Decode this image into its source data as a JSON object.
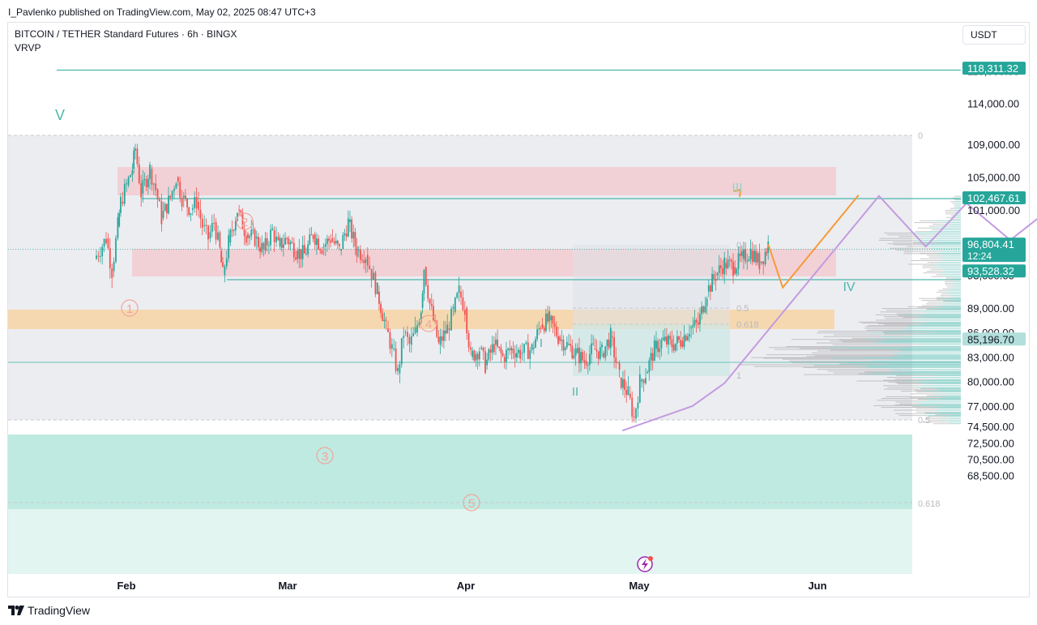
{
  "header": {
    "published": "I_Pavlenko published on TradingView.com, May 02, 2025 08:47 UTC+3"
  },
  "symbol": {
    "title": "BITCOIN / TETHER Standard Futures · 6h · BINGX",
    "indicator": "VRVP"
  },
  "currency_button": "USDT",
  "branding": {
    "label": "TradingView"
  },
  "colors": {
    "bull": "#26a69a",
    "bear": "#ef5350",
    "teal": "#4db6ac",
    "orange": "#f59b3a",
    "purple": "#c39be0",
    "pink_zone": "#f5c6cb",
    "orange_zone": "#f6d5a8",
    "teal_zone": "#c2ebe3"
  },
  "chart_data": {
    "type": "candlestick",
    "xlabels": [
      "Feb",
      "Mar",
      "Apr",
      "May",
      "Jun"
    ],
    "yticks": [
      "118,000.00",
      "114,000.00",
      "109,000.00",
      "105,000.00",
      "101,000.00",
      "93,000.00",
      "89,000.00",
      "86,000.00",
      "83,000.00",
      "80,000.00",
      "77,000.00",
      "74,500.00",
      "72,500.00",
      "70,500.00",
      "68,500.00"
    ],
    "ylim": [
      67500,
      121500
    ],
    "price_labels": [
      {
        "price": 118311.32,
        "text": "118,311.32",
        "color": "#26a69a"
      },
      {
        "price": 102467.61,
        "text": "102,467.61",
        "color": "#26a69a"
      },
      {
        "price": 96804.41,
        "text": "96,804.41",
        "sub": "12:24",
        "color": "#26a69a"
      },
      {
        "price": 93528.32,
        "text": "93,528.32",
        "color": "#26a69a"
      },
      {
        "price": 85196.7,
        "text": "85,196.70",
        "color": "#b2dfdb",
        "textcolor": "#131722"
      }
    ],
    "fib_levels": [
      "0",
      "0.5",
      "0.618",
      "0",
      "0.5",
      "0.618",
      "1"
    ],
    "wave_labels": {
      "main": [
        "V",
        "1",
        "2",
        "3",
        "4",
        "5"
      ],
      "secondary": [
        "I",
        "II",
        "III",
        "IV"
      ]
    },
    "price_series": [
      [
        -9,
        95000
      ],
      [
        -5,
        97500
      ],
      [
        -3,
        93500
      ],
      [
        -1,
        99000
      ],
      [
        0,
        102000
      ],
      [
        2,
        104000
      ],
      [
        4,
        106000
      ],
      [
        5,
        108500
      ],
      [
        7,
        103000
      ],
      [
        10,
        106000
      ],
      [
        12,
        103500
      ],
      [
        14,
        100000
      ],
      [
        17,
        102500
      ],
      [
        19,
        105000
      ],
      [
        21,
        102500
      ],
      [
        24,
        101000
      ],
      [
        26,
        102000
      ],
      [
        28,
        99000
      ],
      [
        30,
        97500
      ],
      [
        32,
        99500
      ],
      [
        34,
        96000
      ],
      [
        35,
        93000
      ],
      [
        37,
        97000
      ],
      [
        40,
        101000
      ],
      [
        43,
        98000
      ],
      [
        46,
        97500
      ],
      [
        49,
        96000
      ],
      [
        52,
        98500
      ],
      [
        54,
        96500
      ],
      [
        57,
        97500
      ],
      [
        60,
        96000
      ],
      [
        63,
        95500
      ],
      [
        66,
        98000
      ],
      [
        69,
        96500
      ],
      [
        72,
        97500
      ],
      [
        75,
        96000
      ],
      [
        78,
        99500
      ],
      [
        81,
        96000
      ],
      [
        84,
        95500
      ],
      [
        88,
        91000
      ],
      [
        91,
        86500
      ],
      [
        93,
        84000
      ],
      [
        95,
        81000
      ],
      [
        97,
        86000
      ],
      [
        99,
        84500
      ],
      [
        101,
        86000
      ],
      [
        103,
        89000
      ],
      [
        104,
        94000
      ],
      [
        106,
        89500
      ],
      [
        109,
        84500
      ],
      [
        112,
        86500
      ],
      [
        114,
        88500
      ],
      [
        116,
        91000
      ],
      [
        118,
        89000
      ],
      [
        120,
        83000
      ],
      [
        123,
        84000
      ],
      [
        125,
        82000
      ],
      [
        128,
        84500
      ],
      [
        131,
        83000
      ],
      [
        134,
        84000
      ],
      [
        137,
        83500
      ],
      [
        141,
        84000
      ],
      [
        144,
        87000
      ],
      [
        147,
        87500
      ],
      [
        150,
        85500
      ],
      [
        153,
        84500
      ],
      [
        156,
        83500
      ],
      [
        159,
        82500
      ],
      [
        162,
        84000
      ],
      [
        165,
        83500
      ],
      [
        168,
        85500
      ],
      [
        171,
        80500
      ],
      [
        174,
        78500
      ],
      [
        176,
        75500
      ],
      [
        178,
        80000
      ],
      [
        180,
        81000
      ],
      [
        183,
        84000
      ],
      [
        186,
        85000
      ],
      [
        189,
        84500
      ],
      [
        192,
        85000
      ],
      [
        195,
        86500
      ],
      [
        198,
        87000
      ],
      [
        201,
        91000
      ],
      [
        204,
        93000
      ],
      [
        207,
        94500
      ],
      [
        210,
        94000
      ],
      [
        213,
        95000
      ],
      [
        216,
        96000
      ],
      [
        219,
        94500
      ],
      [
        221,
        95800
      ],
      [
        222,
        96800
      ]
    ],
    "projection_orange": [
      [
        222,
        96800
      ],
      [
        227,
        91500
      ],
      [
        253,
        102800
      ]
    ],
    "projection_purple": [
      [
        172,
        74000
      ],
      [
        196,
        77000
      ],
      [
        207,
        79800
      ],
      [
        260,
        102700
      ],
      [
        276,
        96500
      ],
      [
        290,
        101800
      ],
      [
        305,
        97300
      ],
      [
        320,
        101500
      ],
      [
        329,
        98000
      ]
    ],
    "volume_profile_levels": [
      [
        102000,
        8
      ],
      [
        100500,
        12
      ],
      [
        99000,
        36
      ],
      [
        97500,
        70
      ],
      [
        96300,
        58
      ],
      [
        95000,
        40
      ],
      [
        93500,
        30
      ],
      [
        92000,
        16
      ],
      [
        90500,
        20
      ],
      [
        89500,
        40
      ],
      [
        88500,
        62
      ],
      [
        87500,
        78
      ],
      [
        86500,
        90
      ],
      [
        85500,
        110
      ],
      [
        84500,
        150
      ],
      [
        83500,
        175
      ],
      [
        82500,
        170
      ],
      [
        81500,
        140
      ],
      [
        80500,
        80
      ],
      [
        79500,
        60
      ],
      [
        78500,
        40
      ],
      [
        77500,
        70
      ],
      [
        76500,
        55
      ],
      [
        75500,
        30
      ]
    ]
  }
}
